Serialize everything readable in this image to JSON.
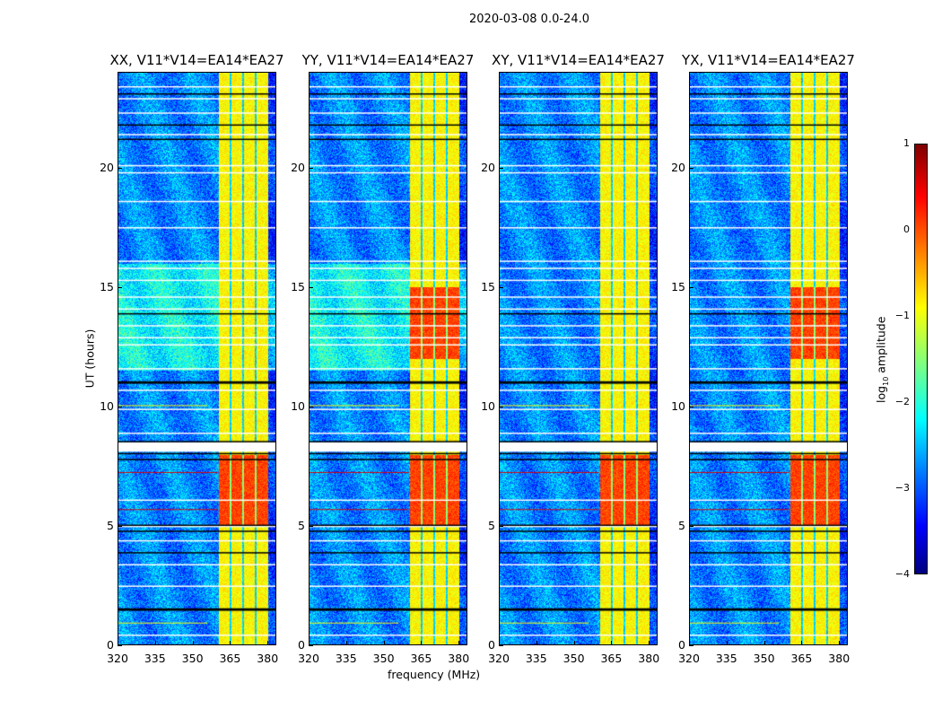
{
  "chart_data": {
    "type": "heatmap",
    "title": "2020-03-08 0.0-24.0",
    "xlabel": "frequency (MHz)",
    "ylabel": "UT (hours)",
    "xlim": [
      320,
      383.5
    ],
    "ylim": [
      0,
      24
    ],
    "xticks": [
      "320",
      "335",
      "350",
      "365",
      "380"
    ],
    "yticks": [
      "0",
      "5",
      "10",
      "15",
      "20"
    ],
    "xtick_values": [
      320,
      335,
      350,
      365,
      380
    ],
    "ytick_values": [
      0,
      5,
      10,
      15,
      20
    ],
    "panels": [
      {
        "title": "XX, V11*V14=EA14*EA27",
        "pol": "XX"
      },
      {
        "title": "YY, V11*V14=EA14*EA27",
        "pol": "YY"
      },
      {
        "title": "XY, V11*V14=EA14*EA27",
        "pol": "XY"
      },
      {
        "title": "YX, V11*V14=EA14*EA27",
        "pol": "YX"
      }
    ],
    "rfi_band_mhz": [
      360.5,
      380
    ],
    "background_log_amplitude": -3,
    "band_log_amplitude": -1,
    "strong_rfi_hours": [
      [
        5,
        8
      ],
      [
        12,
        15
      ]
    ],
    "flagged_gap_hours": [
      8.1,
      8.5
    ],
    "colorbar": {
      "label": "log10 amplitude",
      "label_main": "log",
      "label_sub": "10",
      "label_rest": " amplitude",
      "range": [
        -4,
        1
      ],
      "ticks": [
        "1",
        "0",
        "−1",
        "−2",
        "−3",
        "−4"
      ],
      "tick_values": [
        1,
        0,
        -1,
        -2,
        -3,
        -4
      ],
      "colormap": "jet"
    }
  }
}
